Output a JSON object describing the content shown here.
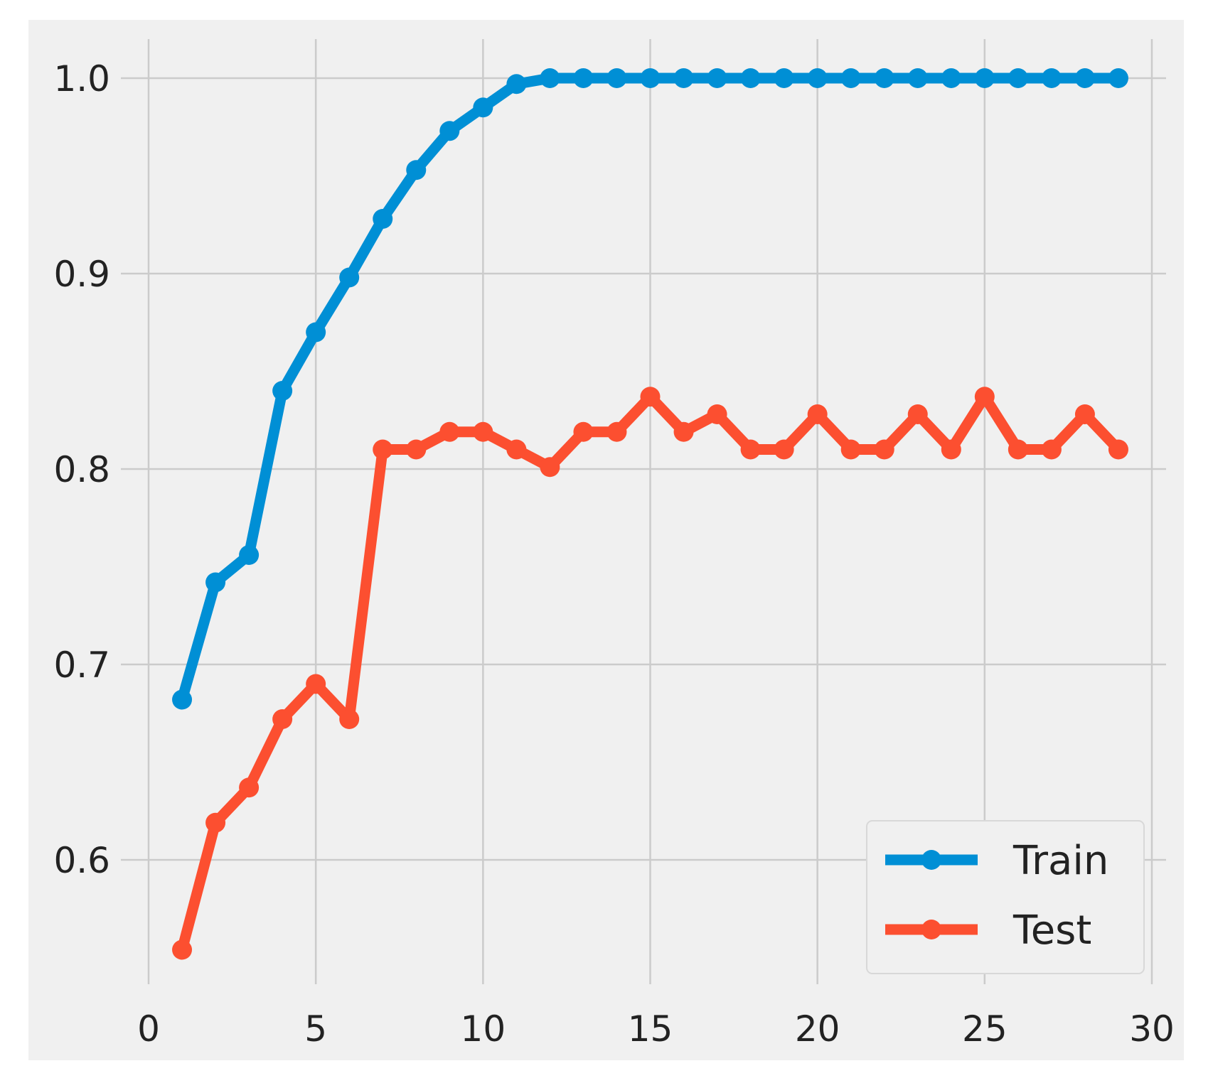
{
  "chart_data": {
    "type": "line",
    "title": "",
    "xlabel": "",
    "ylabel": "",
    "xlim": [
      -0.5,
      30.5
    ],
    "ylim": [
      0.545,
      1.02
    ],
    "x_ticks": [
      0,
      5,
      10,
      15,
      20,
      25,
      30
    ],
    "x_tick_labels": [
      "0",
      "5",
      "10",
      "15",
      "20",
      "25",
      "30"
    ],
    "y_ticks": [
      0.6,
      0.7,
      0.8,
      0.9,
      1.0
    ],
    "y_tick_labels": [
      "0.6",
      "0.7",
      "0.8",
      "0.9",
      "1.0"
    ],
    "grid": true,
    "legend_position": "lower-right",
    "x": [
      1,
      2,
      3,
      4,
      5,
      6,
      7,
      8,
      9,
      10,
      11,
      12,
      13,
      14,
      15,
      16,
      17,
      18,
      19,
      20,
      21,
      22,
      23,
      24,
      25,
      26,
      27,
      28,
      29
    ],
    "series": [
      {
        "name": "Train",
        "color": "#008fd5",
        "values": [
          0.682,
          0.742,
          0.756,
          0.84,
          0.87,
          0.898,
          0.928,
          0.953,
          0.973,
          0.985,
          0.997,
          1.0,
          1.0,
          1.0,
          1.0,
          1.0,
          1.0,
          1.0,
          1.0,
          1.0,
          1.0,
          1.0,
          1.0,
          1.0,
          1.0,
          1.0,
          1.0,
          1.0,
          1.0
        ]
      },
      {
        "name": "Test",
        "color": "#fc4f30",
        "values": [
          0.554,
          0.619,
          0.637,
          0.672,
          0.69,
          0.672,
          0.81,
          0.81,
          0.819,
          0.819,
          0.81,
          0.801,
          0.819,
          0.819,
          0.837,
          0.819,
          0.828,
          0.81,
          0.81,
          0.828,
          0.81,
          0.81,
          0.828,
          0.81,
          0.837,
          0.81,
          0.81,
          0.828,
          0.81
        ]
      }
    ],
    "colors": {
      "figure_background": "#ffffff",
      "plot_background": "#f0f0f0",
      "grid": "#cbcbcb",
      "legend_background": "#f0f0f0"
    }
  }
}
